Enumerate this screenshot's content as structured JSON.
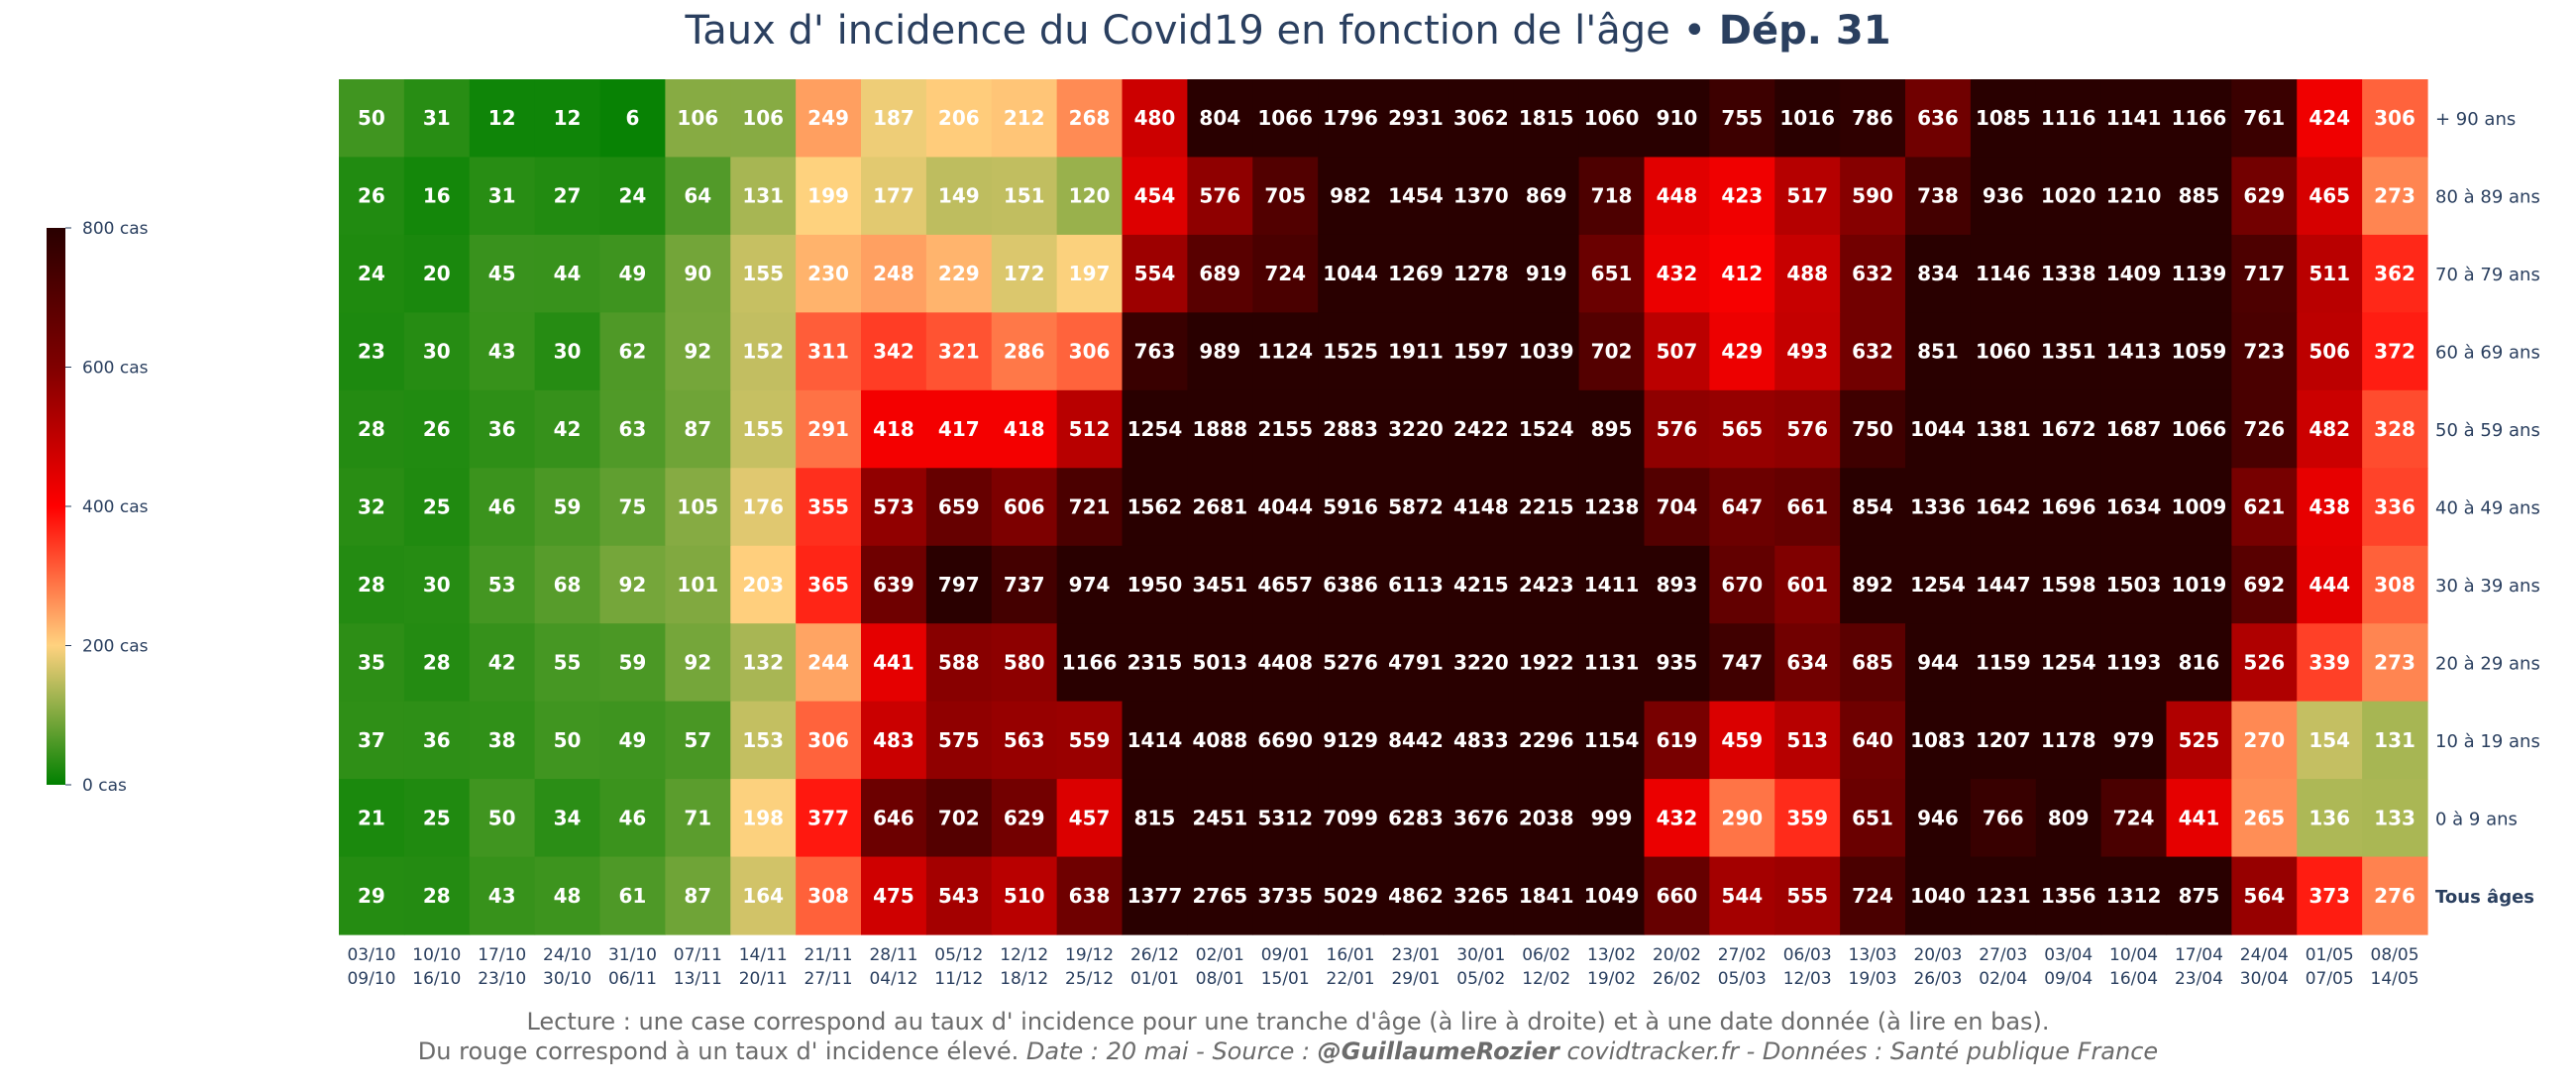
{
  "title": {
    "main": "Taux d' incidence du Covid19 en fonction de l'âge",
    "separator": " • ",
    "dept": "Dép. 31"
  },
  "caption": {
    "line1": "Lecture : une case correspond au taux d' incidence pour une tranche d'âge (à lire à droite) et à une date donnée (à lire en bas).",
    "line2_plain": "Du rouge correspond à un taux d' incidence élevé.  ",
    "line2_italic": "Date : 20 mai - Source : ",
    "line2_bold": "@GuillaumeRozier",
    "line2_rest": " covidtracker.fr - Données : Santé publique France"
  },
  "colors": {
    "scale": [
      "#008000",
      "#ffd27f",
      "#ff0000",
      "#800000",
      "#290000"
    ],
    "text": "#2a3f5f",
    "cell_text": "#ffffff"
  },
  "chart_data": {
    "type": "heatmap",
    "title": "Taux d' incidence du Covid19 en fonction de l'âge • Dép. 31",
    "color_range": [
      0,
      800
    ],
    "colorbar_ticks": [
      "0 cas",
      "200 cas",
      "400 cas",
      "600 cas",
      "800 cas"
    ],
    "colorbar_values": [
      0,
      200,
      400,
      600,
      800
    ],
    "x_start": [
      "03/10",
      "10/10",
      "17/10",
      "24/10",
      "31/10",
      "07/11",
      "14/11",
      "21/11",
      "28/11",
      "05/12",
      "12/12",
      "19/12",
      "26/12",
      "02/01",
      "09/01",
      "16/01",
      "23/01",
      "30/01",
      "06/02",
      "13/02",
      "20/02",
      "27/02",
      "06/03",
      "13/03",
      "20/03",
      "27/03",
      "03/04",
      "10/04",
      "17/04",
      "24/04",
      "01/05",
      "08/05"
    ],
    "x_end": [
      "09/10",
      "16/10",
      "23/10",
      "30/10",
      "06/11",
      "13/11",
      "20/11",
      "27/11",
      "04/12",
      "11/12",
      "18/12",
      "25/12",
      "01/01",
      "08/01",
      "15/01",
      "22/01",
      "29/01",
      "05/02",
      "12/02",
      "19/02",
      "26/02",
      "05/03",
      "12/03",
      "19/03",
      "26/03",
      "02/04",
      "09/04",
      "16/04",
      "23/04",
      "30/04",
      "07/05",
      "14/05"
    ],
    "rows": [
      {
        "label": "+ 90 ans",
        "bold": false,
        "values": [
          50,
          31,
          12,
          12,
          6,
          106,
          106,
          249,
          187,
          206,
          212,
          268,
          480,
          804,
          1066,
          1796,
          2931,
          3062,
          1815,
          1060,
          910,
          755,
          1016,
          786,
          636,
          1085,
          1116,
          1141,
          1166,
          761,
          424,
          306
        ]
      },
      {
        "label": "80 à 89 ans",
        "bold": false,
        "values": [
          26,
          16,
          31,
          27,
          24,
          64,
          131,
          199,
          177,
          149,
          151,
          120,
          454,
          576,
          705,
          982,
          1454,
          1370,
          869,
          718,
          448,
          423,
          517,
          590,
          738,
          936,
          1020,
          1210,
          885,
          629,
          465,
          273
        ]
      },
      {
        "label": "70 à 79 ans",
        "bold": false,
        "values": [
          24,
          20,
          45,
          44,
          49,
          90,
          155,
          230,
          248,
          229,
          172,
          197,
          554,
          689,
          724,
          1044,
          1269,
          1278,
          919,
          651,
          432,
          412,
          488,
          632,
          834,
          1146,
          1338,
          1409,
          1139,
          717,
          511,
          362
        ]
      },
      {
        "label": "60 à 69 ans",
        "bold": false,
        "values": [
          23,
          30,
          43,
          30,
          62,
          92,
          152,
          311,
          342,
          321,
          286,
          306,
          763,
          989,
          1124,
          1525,
          1911,
          1597,
          1039,
          702,
          507,
          429,
          493,
          632,
          851,
          1060,
          1351,
          1413,
          1059,
          723,
          506,
          372
        ]
      },
      {
        "label": "50 à 59 ans",
        "bold": false,
        "values": [
          28,
          26,
          36,
          42,
          63,
          87,
          155,
          291,
          418,
          417,
          418,
          512,
          1254,
          1888,
          2155,
          2883,
          3220,
          2422,
          1524,
          895,
          576,
          565,
          576,
          750,
          1044,
          1381,
          1672,
          1687,
          1066,
          726,
          482,
          328
        ]
      },
      {
        "label": "40 à 49 ans",
        "bold": false,
        "values": [
          32,
          25,
          46,
          59,
          75,
          105,
          176,
          355,
          573,
          659,
          606,
          721,
          1562,
          2681,
          4044,
          5916,
          5872,
          4148,
          2215,
          1238,
          704,
          647,
          661,
          854,
          1336,
          1642,
          1696,
          1634,
          1009,
          621,
          438,
          336
        ]
      },
      {
        "label": "30 à 39 ans",
        "bold": false,
        "values": [
          28,
          30,
          53,
          68,
          92,
          101,
          203,
          365,
          639,
          797,
          737,
          974,
          1950,
          3451,
          4657,
          6386,
          6113,
          4215,
          2423,
          1411,
          893,
          670,
          601,
          892,
          1254,
          1447,
          1598,
          1503,
          1019,
          692,
          444,
          308
        ]
      },
      {
        "label": "20 à 29 ans",
        "bold": false,
        "values": [
          35,
          28,
          42,
          55,
          59,
          92,
          132,
          244,
          441,
          588,
          580,
          1166,
          2315,
          5013,
          4408,
          5276,
          4791,
          3220,
          1922,
          1131,
          935,
          747,
          634,
          685,
          944,
          1159,
          1254,
          1193,
          816,
          526,
          339,
          273
        ]
      },
      {
        "label": "10 à 19 ans",
        "bold": false,
        "values": [
          37,
          36,
          38,
          50,
          49,
          57,
          153,
          306,
          483,
          575,
          563,
          559,
          1414,
          4088,
          6690,
          9129,
          8442,
          4833,
          2296,
          1154,
          619,
          459,
          513,
          640,
          1083,
          1207,
          1178,
          979,
          525,
          270,
          154,
          131
        ]
      },
      {
        "label": "0 à 9 ans",
        "bold": false,
        "values": [
          21,
          25,
          50,
          34,
          46,
          71,
          198,
          377,
          646,
          702,
          629,
          457,
          815,
          2451,
          5312,
          7099,
          6283,
          3676,
          2038,
          999,
          432,
          290,
          359,
          651,
          946,
          766,
          809,
          724,
          441,
          265,
          136,
          133
        ]
      },
      {
        "label": "Tous âges",
        "bold": true,
        "values": [
          29,
          28,
          43,
          48,
          61,
          87,
          164,
          308,
          475,
          543,
          510,
          638,
          1377,
          2765,
          3735,
          5029,
          4862,
          3265,
          1841,
          1049,
          660,
          544,
          555,
          724,
          1040,
          1231,
          1356,
          1312,
          875,
          564,
          373,
          276
        ]
      }
    ]
  }
}
